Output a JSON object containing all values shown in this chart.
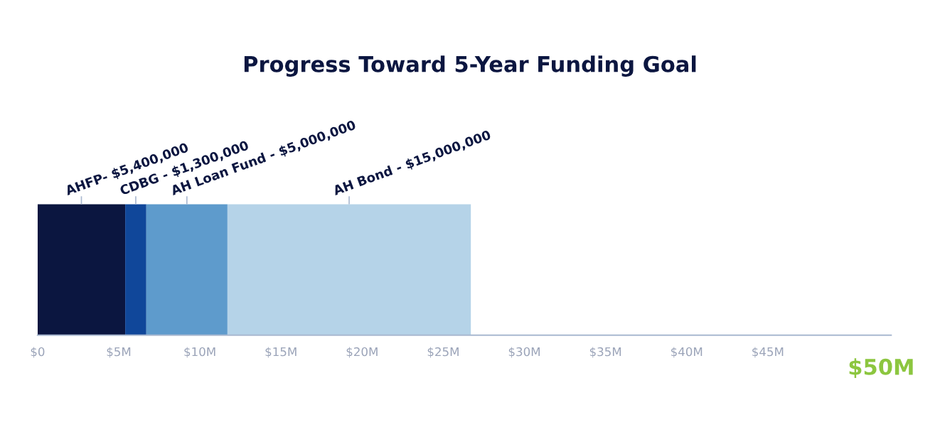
{
  "chart_data": {
    "type": "bar",
    "orientation": "horizontal",
    "stacked": true,
    "title": "Progress Toward 5-Year Funding Goal",
    "categories": [
      null
    ],
    "series": [
      {
        "name": "AHFP-",
        "color": "#0b1640",
        "values": [
          5400000
        ],
        "value_labels": [
          "$5,400,000"
        ]
      },
      {
        "name": "CDBG -",
        "color": "#10479a",
        "values": [
          1300000
        ],
        "value_labels": [
          "$1,300,000"
        ]
      },
      {
        "name": "AH Loan Fund -",
        "color": "#5e9bcc",
        "values": [
          5000000
        ],
        "value_labels": [
          "$5,000,000"
        ]
      },
      {
        "name": "AH Bond -",
        "color": "#b5d3e8",
        "values": [
          15000000
        ],
        "value_labels": [
          "$15,000,000"
        ]
      }
    ],
    "xlim": [
      0,
      52600000
    ],
    "xticks": [
      {
        "value": 0,
        "label": "$0"
      },
      {
        "value": 5000000,
        "label": "$5M"
      },
      {
        "value": 10000000,
        "label": "$10M"
      },
      {
        "value": 15000000,
        "label": "$15M"
      },
      {
        "value": 20000000,
        "label": "$20M"
      },
      {
        "value": 25000000,
        "label": "$25M"
      },
      {
        "value": 30000000,
        "label": "$30M"
      },
      {
        "value": 35000000,
        "label": "$35M"
      },
      {
        "value": 40000000,
        "label": "$40M"
      },
      {
        "value": 45000000,
        "label": "$45M"
      }
    ],
    "annotations": [
      "$50M"
    ],
    "tick_labels": "x",
    "grid": false,
    "legend": false
  }
}
